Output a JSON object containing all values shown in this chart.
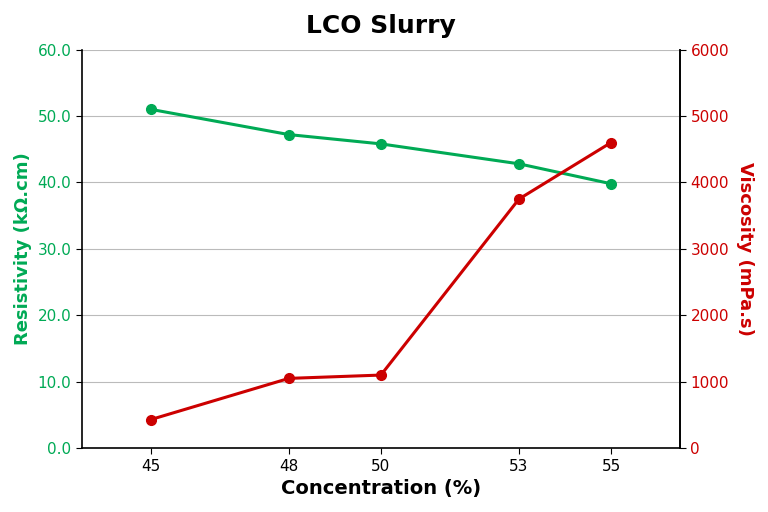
{
  "title": "LCO Slurry",
  "title_fontsize": 18,
  "title_fontweight": "bold",
  "xlabel": "Concentration (%)",
  "xlabel_fontsize": 14,
  "ylabel_left": "Resistivity (kΩ.cm)",
  "ylabel_right": "Viscosity (mPa.s)",
  "ylabel_fontsize": 13,
  "x": [
    45,
    48,
    50,
    53,
    55
  ],
  "resistivity": [
    51.0,
    47.2,
    45.8,
    42.8,
    39.8
  ],
  "viscosity": [
    430,
    1050,
    1100,
    3750,
    4600
  ],
  "green_color": "#00AA55",
  "red_color": "#CC0000",
  "ylim_left": [
    0.0,
    60.0
  ],
  "ylim_right": [
    0,
    6000
  ],
  "yticks_left": [
    0.0,
    10.0,
    20.0,
    30.0,
    40.0,
    50.0,
    60.0
  ],
  "yticks_right": [
    0,
    1000,
    2000,
    3000,
    4000,
    5000,
    6000
  ],
  "xticks": [
    45,
    48,
    50,
    53,
    55
  ],
  "linewidth": 2.2,
  "markersize": 7,
  "background_color": "#ffffff",
  "plot_bg_color": "#ffffff",
  "grid_color": "#bbbbbb",
  "grid_axis": "y",
  "xlim": [
    43.5,
    56.5
  ]
}
